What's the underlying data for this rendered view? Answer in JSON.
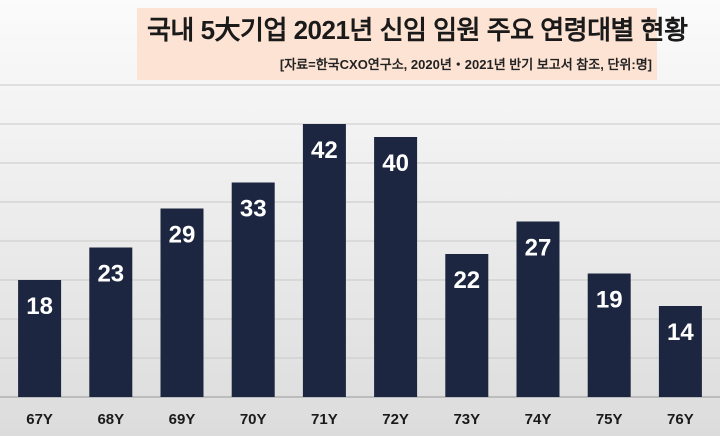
{
  "chart_data": {
    "type": "bar",
    "title": "국내 5大기업 2021년 신임 임원 주요 연령대별 현황",
    "subtitle": "[자료=한국CXO연구소, 2020년・2021년 반기 보고서 참조, 단위:명]",
    "categories": [
      "67Y",
      "68Y",
      "69Y",
      "70Y",
      "71Y",
      "72Y",
      "73Y",
      "74Y",
      "75Y",
      "76Y"
    ],
    "values": [
      18,
      23,
      29,
      33,
      42,
      40,
      22,
      27,
      19,
      14
    ],
    "ylim": [
      0,
      48
    ],
    "grid": true,
    "bar_color": "#1c2640",
    "label_color": "#ffffff"
  }
}
